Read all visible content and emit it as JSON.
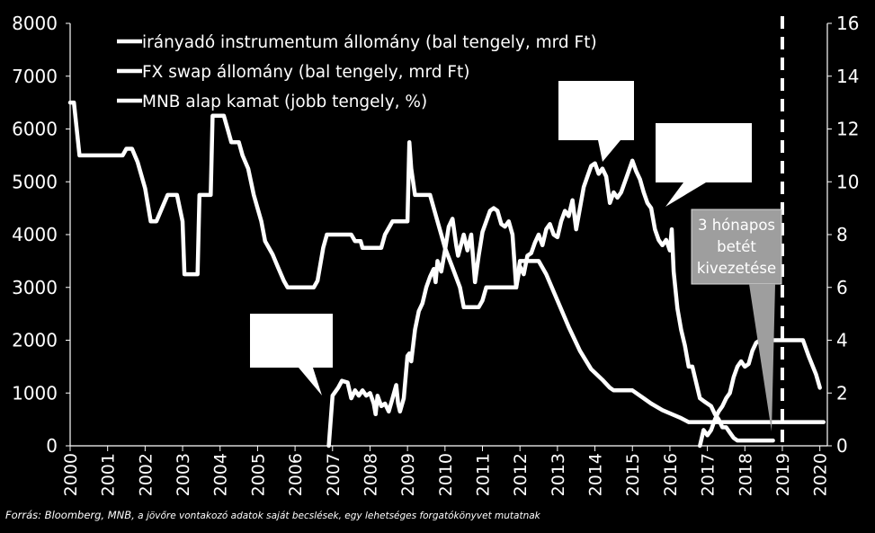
{
  "chart_data": {
    "type": "line",
    "title": "",
    "xlabel": "",
    "ylabel_left": "",
    "ylabel_right": "",
    "x_ticks": [
      2000,
      2001,
      2002,
      2003,
      2004,
      2005,
      2006,
      2007,
      2008,
      2009,
      2010,
      2011,
      2012,
      2013,
      2014,
      2015,
      2016,
      2017,
      2018,
      2019,
      2020
    ],
    "xlim": [
      2000,
      2020.2
    ],
    "ylim_left": [
      0,
      8000
    ],
    "ylim_right": [
      0,
      16
    ],
    "y_left_ticks": [
      0,
      1000,
      2000,
      3000,
      4000,
      5000,
      6000,
      7000,
      8000
    ],
    "y_right_ticks": [
      0,
      2,
      4,
      6,
      8,
      10,
      12,
      14,
      16
    ],
    "grid": false,
    "legend_position": "top-left",
    "colors": {
      "background": "#000000",
      "lines": "#ffffff",
      "text": "#ffffff",
      "callout_fill": "#ffffff",
      "callout_box": "#9e9e9e"
    },
    "series": [
      {
        "name": "irányadó instrumentum állomány (bal tengely, mrd Ft)",
        "axis": "left",
        "points": [
          [
            6.9,
            0
          ],
          [
            7.0,
            950
          ],
          [
            7.15,
            1100
          ],
          [
            7.25,
            1230
          ],
          [
            7.4,
            1200
          ],
          [
            7.5,
            900
          ],
          [
            7.6,
            1050
          ],
          [
            7.7,
            950
          ],
          [
            7.8,
            1050
          ],
          [
            7.9,
            950
          ],
          [
            8.0,
            1000
          ],
          [
            8.1,
            800
          ],
          [
            8.15,
            600
          ],
          [
            8.2,
            950
          ],
          [
            8.3,
            750
          ],
          [
            8.4,
            800
          ],
          [
            8.5,
            650
          ],
          [
            8.6,
            900
          ],
          [
            8.7,
            1150
          ],
          [
            8.75,
            800
          ],
          [
            8.8,
            650
          ],
          [
            8.9,
            900
          ],
          [
            9.0,
            1700
          ],
          [
            9.05,
            1750
          ],
          [
            9.1,
            1600
          ],
          [
            9.2,
            2200
          ],
          [
            9.3,
            2550
          ],
          [
            9.4,
            2700
          ],
          [
            9.5,
            3000
          ],
          [
            9.6,
            3200
          ],
          [
            9.7,
            3350
          ],
          [
            9.75,
            3100
          ],
          [
            9.8,
            3500
          ],
          [
            9.9,
            3300
          ],
          [
            10.0,
            3700
          ],
          [
            10.1,
            4150
          ],
          [
            10.2,
            4300
          ],
          [
            10.3,
            3800
          ],
          [
            10.35,
            3600
          ],
          [
            10.5,
            4000
          ],
          [
            10.6,
            3700
          ],
          [
            10.7,
            4000
          ],
          [
            10.8,
            3100
          ],
          [
            10.9,
            3600
          ],
          [
            11.0,
            4050
          ],
          [
            11.2,
            4450
          ],
          [
            11.3,
            4500
          ],
          [
            11.4,
            4450
          ],
          [
            11.5,
            4200
          ],
          [
            11.6,
            4150
          ],
          [
            11.7,
            4250
          ],
          [
            11.8,
            4000
          ],
          [
            11.9,
            3000
          ],
          [
            12.0,
            3400
          ],
          [
            12.1,
            3250
          ],
          [
            12.2,
            3600
          ],
          [
            12.3,
            3650
          ],
          [
            12.4,
            3850
          ],
          [
            12.5,
            4000
          ],
          [
            12.6,
            3800
          ],
          [
            12.7,
            4100
          ],
          [
            12.8,
            4200
          ],
          [
            12.9,
            4000
          ],
          [
            13.0,
            3950
          ],
          [
            13.1,
            4250
          ],
          [
            13.2,
            4450
          ],
          [
            13.3,
            4350
          ],
          [
            13.4,
            4650
          ],
          [
            13.5,
            4100
          ],
          [
            13.6,
            4500
          ],
          [
            13.7,
            4900
          ],
          [
            13.8,
            5100
          ],
          [
            13.9,
            5300
          ],
          [
            14.0,
            5350
          ],
          [
            14.1,
            5150
          ],
          [
            14.2,
            5250
          ],
          [
            14.3,
            5100
          ],
          [
            14.4,
            4600
          ],
          [
            14.5,
            4800
          ],
          [
            14.6,
            4700
          ],
          [
            14.7,
            4800
          ],
          [
            14.8,
            5000
          ],
          [
            14.9,
            5200
          ],
          [
            15.0,
            5400
          ],
          [
            15.1,
            5200
          ],
          [
            15.2,
            5050
          ],
          [
            15.3,
            4800
          ],
          [
            15.4,
            4600
          ],
          [
            15.5,
            4500
          ],
          [
            15.6,
            4100
          ],
          [
            15.7,
            3900
          ],
          [
            15.8,
            3800
          ],
          [
            15.9,
            3900
          ],
          [
            16.0,
            3700
          ],
          [
            16.05,
            4100
          ],
          [
            16.1,
            3300
          ],
          [
            16.2,
            2600
          ],
          [
            16.3,
            2200
          ],
          [
            16.4,
            1900
          ],
          [
            16.5,
            1500
          ],
          [
            16.6,
            1500
          ],
          [
            16.7,
            1200
          ],
          [
            16.8,
            900
          ],
          [
            16.9,
            850
          ],
          [
            17.0,
            800
          ],
          [
            17.1,
            750
          ],
          [
            17.2,
            600
          ],
          [
            17.3,
            500
          ],
          [
            17.4,
            350
          ],
          [
            17.5,
            350
          ],
          [
            17.6,
            250
          ],
          [
            17.7,
            150
          ],
          [
            17.8,
            100
          ],
          [
            17.9,
            100
          ],
          [
            18.0,
            100
          ],
          [
            18.1,
            100
          ],
          [
            18.2,
            100
          ],
          [
            18.4,
            100
          ],
          [
            18.6,
            100
          ],
          [
            18.75,
            100
          ]
        ]
      },
      {
        "name": "FX swap állomány (bal tengely, mrd Ft)",
        "axis": "left",
        "points": [
          [
            16.8,
            0
          ],
          [
            16.9,
            300
          ],
          [
            17.0,
            200
          ],
          [
            17.1,
            300
          ],
          [
            17.2,
            500
          ],
          [
            17.3,
            650
          ],
          [
            17.4,
            750
          ],
          [
            17.5,
            900
          ],
          [
            17.6,
            1000
          ],
          [
            17.7,
            1300
          ],
          [
            17.8,
            1500
          ],
          [
            17.9,
            1600
          ],
          [
            18.0,
            1500
          ],
          [
            18.1,
            1550
          ],
          [
            18.2,
            1800
          ],
          [
            18.3,
            1950
          ],
          [
            18.4,
            2000
          ],
          [
            18.5,
            2000
          ],
          [
            18.6,
            2000
          ],
          [
            18.8,
            2000
          ],
          [
            19.0,
            2000
          ],
          [
            19.2,
            2000
          ],
          [
            19.4,
            2000
          ],
          [
            19.55,
            2000
          ],
          [
            19.7,
            1700
          ],
          [
            19.9,
            1350
          ],
          [
            20.0,
            1100
          ]
        ]
      },
      {
        "name": "MNB alap kamat (jobb tengely, %)",
        "axis": "right",
        "points": [
          [
            0.0,
            13.0
          ],
          [
            0.1,
            13.0
          ],
          [
            0.25,
            11.0
          ],
          [
            0.5,
            11.0
          ],
          [
            1.0,
            11.0
          ],
          [
            1.4,
            11.0
          ],
          [
            1.5,
            11.25
          ],
          [
            1.65,
            11.25
          ],
          [
            1.8,
            10.75
          ],
          [
            2.0,
            9.75
          ],
          [
            2.15,
            8.5
          ],
          [
            2.3,
            8.5
          ],
          [
            2.45,
            9.0
          ],
          [
            2.6,
            9.5
          ],
          [
            2.85,
            9.5
          ],
          [
            3.0,
            8.5
          ],
          [
            3.05,
            6.5
          ],
          [
            3.4,
            6.5
          ],
          [
            3.45,
            9.5
          ],
          [
            3.75,
            9.5
          ],
          [
            3.8,
            12.5
          ],
          [
            4.1,
            12.5
          ],
          [
            4.2,
            12.0
          ],
          [
            4.3,
            11.5
          ],
          [
            4.5,
            11.5
          ],
          [
            4.6,
            11.0
          ],
          [
            4.75,
            10.5
          ],
          [
            4.9,
            9.5
          ],
          [
            5.0,
            9.0
          ],
          [
            5.1,
            8.5
          ],
          [
            5.2,
            7.75
          ],
          [
            5.4,
            7.25
          ],
          [
            5.55,
            6.75
          ],
          [
            5.7,
            6.25
          ],
          [
            5.8,
            6.0
          ],
          [
            6.0,
            6.0
          ],
          [
            6.5,
            6.0
          ],
          [
            6.6,
            6.25
          ],
          [
            6.75,
            7.5
          ],
          [
            6.85,
            8.0
          ],
          [
            7.5,
            8.0
          ],
          [
            7.6,
            7.75
          ],
          [
            7.75,
            7.75
          ],
          [
            7.8,
            7.5
          ],
          [
            8.3,
            7.5
          ],
          [
            8.4,
            8.0
          ],
          [
            8.6,
            8.5
          ],
          [
            9.0,
            8.5
          ],
          [
            9.05,
            11.5
          ],
          [
            9.1,
            10.5
          ],
          [
            9.2,
            9.5
          ],
          [
            9.6,
            9.5
          ],
          [
            9.8,
            8.5
          ],
          [
            9.9,
            8.0
          ],
          [
            10.0,
            7.5
          ],
          [
            10.2,
            6.75
          ],
          [
            10.4,
            6.0
          ],
          [
            10.5,
            5.25
          ],
          [
            10.9,
            5.25
          ],
          [
            11.0,
            5.5
          ],
          [
            11.1,
            6.0
          ],
          [
            11.9,
            6.0
          ],
          [
            12.0,
            7.0
          ],
          [
            12.2,
            7.0
          ],
          [
            12.5,
            7.0
          ],
          [
            12.7,
            6.5
          ],
          [
            13.0,
            5.5
          ],
          [
            13.3,
            4.5
          ],
          [
            13.6,
            3.6
          ],
          [
            13.9,
            2.9
          ],
          [
            14.2,
            2.5
          ],
          [
            14.4,
            2.2
          ],
          [
            14.5,
            2.1
          ],
          [
            15.0,
            2.1
          ],
          [
            15.3,
            1.8
          ],
          [
            15.5,
            1.6
          ],
          [
            15.8,
            1.35
          ],
          [
            16.3,
            1.05
          ],
          [
            16.5,
            0.9
          ],
          [
            17.0,
            0.9
          ],
          [
            18.0,
            0.9
          ],
          [
            19.0,
            0.9
          ],
          [
            20.0,
            0.9
          ],
          [
            20.1,
            0.9
          ]
        ]
      }
    ],
    "forecast_line_x": 19.0,
    "annotations": [
      {
        "text": "3 hónapos betét kivezetése",
        "lines": [
          "3 hónapos",
          "betét",
          "kivezetése"
        ]
      }
    ]
  },
  "footer": {
    "source_lead": "Forrás: Bloomberg, MNB,",
    "source_rest": " a jövőre vontakozó adatok saját becslések, egy lehetséges forgatókönyvet mutatnak"
  }
}
